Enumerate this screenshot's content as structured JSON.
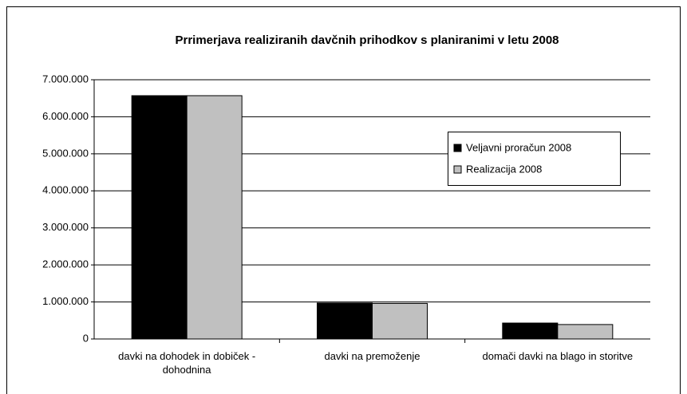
{
  "chart_data": {
    "type": "bar",
    "title": "Prrimerjava realiziranih davčnih prihodkov s planiranimi v letu 2008",
    "categories": [
      "davki na dohodek in dobiček - dohodnina",
      "davki na premoženje",
      "domači davki na blago in storitve"
    ],
    "series": [
      {
        "name": "Veljavni proračun 2008",
        "color": "#000000",
        "values": [
          6570000,
          970000,
          430000
        ]
      },
      {
        "name": "Realizacija 2008",
        "color": "#c0c0c0",
        "values": [
          6570000,
          960000,
          390000
        ]
      }
    ],
    "ylim": [
      0,
      7000000
    ],
    "yticks": [
      0,
      {
        "value": 1000000,
        "label": "1.000.000"
      },
      {
        "value": 2000000,
        "label": "2.000.000"
      },
      {
        "value": 3000000,
        "label": "3.000.000"
      },
      {
        "value": 4000000,
        "label": "4.000.000"
      },
      {
        "value": 5000000,
        "label": "5.000.000"
      },
      {
        "value": 6000000,
        "label": "6.000.000"
      },
      {
        "value": 7000000,
        "label": "7.000.000"
      }
    ],
    "grid": true,
    "legend": "right"
  }
}
